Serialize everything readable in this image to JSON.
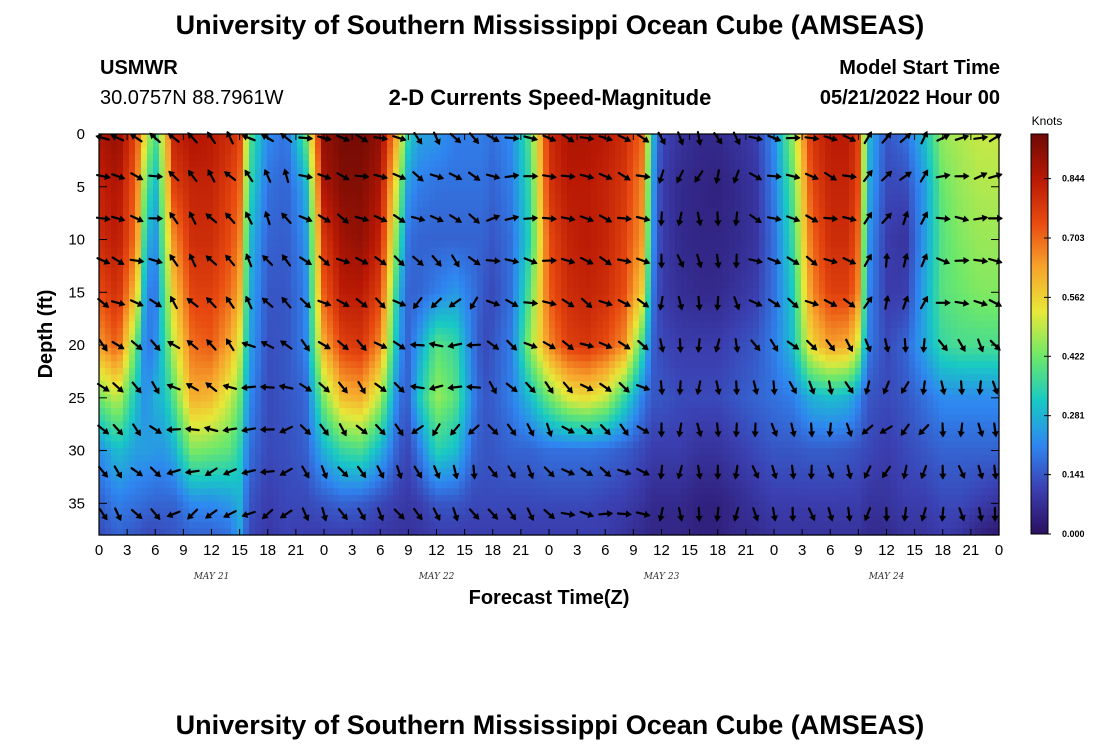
{
  "page": {
    "title_top": "University of Southern Mississippi Ocean Cube (AMSEAS)",
    "title_bottom": "University of Southern Mississippi Ocean Cube (AMSEAS)",
    "station": "USMWR",
    "coords": "30.0757N  88.7961W",
    "plot_title": "2-D Currents Speed-Magnitude",
    "model_start_label": "Model Start Time",
    "model_start_value": "05/21/2022 Hour 00"
  },
  "colors": {
    "ramp": [
      "#2a0f5f",
      "#3b3fb0",
      "#2f86f0",
      "#18c9c4",
      "#6de86a",
      "#e8e838",
      "#f7a32c",
      "#e84a10",
      "#b81804",
      "#6e0a04"
    ],
    "arrow": "#000000",
    "white_fill": "#ffffff"
  },
  "chart_data": {
    "type": "heatmap",
    "title": "2-D Currents Speed-Magnitude",
    "xlabel": "Forecast Time(Z)",
    "ylabel": "Depth (ft)",
    "x_ticks": [
      "0",
      "3",
      "6",
      "9",
      "12",
      "15",
      "18",
      "21",
      "0",
      "3",
      "6",
      "9",
      "12",
      "15",
      "18",
      "21",
      "0",
      "3",
      "6",
      "9",
      "12",
      "15",
      "18",
      "21",
      "0",
      "3",
      "6",
      "9",
      "12",
      "15",
      "18",
      "21",
      "0"
    ],
    "x_range_hours": [
      0,
      96
    ],
    "day_labels": [
      {
        "text": "MAY 21",
        "hour": 12
      },
      {
        "text": "MAY 22",
        "hour": 36
      },
      {
        "text": "MAY 23",
        "hour": 60
      },
      {
        "text": "MAY 24",
        "hour": 84
      }
    ],
    "y_ticks": [
      "0",
      "5",
      "10",
      "15",
      "20",
      "25",
      "30",
      "35"
    ],
    "y_range_ft": [
      0,
      38
    ],
    "colorbar": {
      "unit": "Knots",
      "ticks": [
        "0.000",
        "0.141",
        "0.281",
        "0.422",
        "0.562",
        "0.703",
        "0.844"
      ],
      "range": [
        0,
        0.95
      ]
    },
    "arrow_depths_ft": [
      0,
      4,
      8,
      12,
      16,
      20,
      24,
      28,
      32,
      36
    ],
    "speed_profiles": {
      "depths_ft": [
        0,
        5,
        10,
        15,
        20,
        25,
        30,
        35,
        38
      ],
      "hours": [
        0,
        2,
        4,
        5,
        6,
        7,
        8,
        10,
        12,
        14,
        15,
        16,
        18,
        20,
        22,
        24,
        26,
        28,
        30,
        32,
        33,
        34,
        36,
        38,
        40,
        41,
        42,
        44,
        46,
        48,
        50,
        52,
        54,
        56,
        58,
        59,
        60,
        62,
        64,
        66,
        68,
        70,
        72,
        74,
        76,
        78,
        80,
        81,
        82,
        84,
        86,
        88,
        90,
        92,
        94,
        96
      ],
      "values_knots": [
        [
          0.86,
          0.82,
          0.8,
          0.74,
          0.64,
          0.42,
          0.22,
          0.15,
          0.12
        ],
        [
          0.9,
          0.86,
          0.84,
          0.8,
          0.72,
          0.5,
          0.3,
          0.2,
          0.16
        ],
        [
          0.74,
          0.7,
          0.68,
          0.58,
          0.4,
          0.3,
          0.25,
          0.18,
          0.14
        ],
        [
          0.52,
          0.4,
          0.3,
          0.22,
          0.18,
          0.22,
          0.25,
          0.17,
          0.12
        ],
        [
          0.38,
          0.28,
          0.22,
          0.18,
          0.22,
          0.28,
          0.24,
          0.16,
          0.12
        ],
        [
          0.55,
          0.5,
          0.45,
          0.4,
          0.35,
          0.3,
          0.24,
          0.16,
          0.13
        ],
        [
          0.82,
          0.76,
          0.66,
          0.58,
          0.5,
          0.4,
          0.28,
          0.16,
          0.14
        ],
        [
          0.86,
          0.82,
          0.8,
          0.76,
          0.7,
          0.62,
          0.44,
          0.22,
          0.16
        ],
        [
          0.84,
          0.82,
          0.8,
          0.76,
          0.72,
          0.6,
          0.42,
          0.22,
          0.16
        ],
        [
          0.8,
          0.76,
          0.74,
          0.7,
          0.62,
          0.5,
          0.4,
          0.24,
          0.18
        ],
        [
          0.76,
          0.72,
          0.68,
          0.62,
          0.52,
          0.42,
          0.34,
          0.28,
          0.26
        ],
        [
          0.4,
          0.36,
          0.3,
          0.28,
          0.26,
          0.22,
          0.18,
          0.14,
          0.12
        ],
        [
          0.22,
          0.18,
          0.16,
          0.14,
          0.13,
          0.12,
          0.12,
          0.1,
          0.09
        ],
        [
          0.18,
          0.16,
          0.15,
          0.14,
          0.14,
          0.14,
          0.13,
          0.12,
          0.11
        ],
        [
          0.4,
          0.26,
          0.22,
          0.2,
          0.2,
          0.16,
          0.15,
          0.12,
          0.1
        ],
        [
          0.9,
          0.86,
          0.78,
          0.72,
          0.62,
          0.44,
          0.28,
          0.14,
          0.1
        ],
        [
          0.94,
          0.92,
          0.88,
          0.84,
          0.76,
          0.6,
          0.36,
          0.16,
          0.1
        ],
        [
          0.94,
          0.92,
          0.9,
          0.84,
          0.78,
          0.62,
          0.38,
          0.15,
          0.1
        ],
        [
          0.9,
          0.86,
          0.82,
          0.76,
          0.66,
          0.48,
          0.28,
          0.12,
          0.09
        ],
        [
          0.58,
          0.46,
          0.38,
          0.28,
          0.24,
          0.18,
          0.14,
          0.1,
          0.08
        ],
        [
          0.34,
          0.24,
          0.18,
          0.16,
          0.16,
          0.16,
          0.12,
          0.09,
          0.08
        ],
        [
          0.26,
          0.2,
          0.16,
          0.16,
          0.24,
          0.3,
          0.18,
          0.1,
          0.08
        ],
        [
          0.24,
          0.18,
          0.16,
          0.2,
          0.4,
          0.46,
          0.34,
          0.14,
          0.1
        ],
        [
          0.2,
          0.18,
          0.16,
          0.24,
          0.36,
          0.4,
          0.3,
          0.14,
          0.1
        ],
        [
          0.2,
          0.18,
          0.16,
          0.18,
          0.18,
          0.2,
          0.16,
          0.12,
          0.1
        ],
        [
          0.2,
          0.18,
          0.16,
          0.14,
          0.12,
          0.14,
          0.14,
          0.12,
          0.1
        ],
        [
          0.18,
          0.16,
          0.14,
          0.12,
          0.14,
          0.15,
          0.14,
          0.12,
          0.1
        ],
        [
          0.22,
          0.2,
          0.18,
          0.18,
          0.2,
          0.2,
          0.16,
          0.12,
          0.1
        ],
        [
          0.4,
          0.36,
          0.34,
          0.4,
          0.46,
          0.3,
          0.16,
          0.12,
          0.1
        ],
        [
          0.8,
          0.78,
          0.74,
          0.72,
          0.66,
          0.42,
          0.18,
          0.12,
          0.1
        ],
        [
          0.86,
          0.84,
          0.82,
          0.8,
          0.76,
          0.52,
          0.18,
          0.12,
          0.1
        ],
        [
          0.86,
          0.84,
          0.84,
          0.82,
          0.78,
          0.55,
          0.18,
          0.12,
          0.1
        ],
        [
          0.84,
          0.82,
          0.82,
          0.8,
          0.74,
          0.5,
          0.17,
          0.11,
          0.1
        ],
        [
          0.8,
          0.78,
          0.76,
          0.74,
          0.66,
          0.36,
          0.15,
          0.1,
          0.08
        ],
        [
          0.7,
          0.66,
          0.64,
          0.56,
          0.36,
          0.2,
          0.12,
          0.08,
          0.06
        ],
        [
          0.3,
          0.26,
          0.24,
          0.2,
          0.16,
          0.14,
          0.1,
          0.06,
          0.05
        ],
        [
          0.12,
          0.1,
          0.1,
          0.1,
          0.12,
          0.14,
          0.1,
          0.06,
          0.05
        ],
        [
          0.08,
          0.06,
          0.06,
          0.07,
          0.1,
          0.12,
          0.1,
          0.06,
          0.05
        ],
        [
          0.06,
          0.05,
          0.05,
          0.06,
          0.1,
          0.12,
          0.08,
          0.04,
          0.04
        ],
        [
          0.06,
          0.04,
          0.05,
          0.06,
          0.1,
          0.12,
          0.08,
          0.04,
          0.04
        ],
        [
          0.08,
          0.06,
          0.06,
          0.08,
          0.12,
          0.14,
          0.1,
          0.06,
          0.06
        ],
        [
          0.1,
          0.08,
          0.08,
          0.1,
          0.14,
          0.16,
          0.12,
          0.08,
          0.06
        ],
        [
          0.22,
          0.2,
          0.18,
          0.18,
          0.2,
          0.18,
          0.14,
          0.1,
          0.08
        ],
        [
          0.46,
          0.4,
          0.36,
          0.32,
          0.3,
          0.2,
          0.14,
          0.1,
          0.08
        ],
        [
          0.78,
          0.74,
          0.7,
          0.66,
          0.56,
          0.28,
          0.15,
          0.1,
          0.08
        ],
        [
          0.84,
          0.82,
          0.8,
          0.76,
          0.64,
          0.3,
          0.15,
          0.1,
          0.08
        ],
        [
          0.84,
          0.82,
          0.8,
          0.76,
          0.62,
          0.28,
          0.14,
          0.1,
          0.08
        ],
        [
          0.76,
          0.74,
          0.7,
          0.66,
          0.5,
          0.22,
          0.13,
          0.1,
          0.08
        ],
        [
          0.3,
          0.28,
          0.24,
          0.22,
          0.2,
          0.14,
          0.12,
          0.08,
          0.06
        ],
        [
          0.14,
          0.12,
          0.1,
          0.1,
          0.12,
          0.12,
          0.1,
          0.08,
          0.06
        ],
        [
          0.18,
          0.12,
          0.08,
          0.1,
          0.16,
          0.14,
          0.12,
          0.1,
          0.08
        ],
        [
          0.3,
          0.24,
          0.24,
          0.26,
          0.26,
          0.18,
          0.14,
          0.1,
          0.08
        ],
        [
          0.46,
          0.42,
          0.4,
          0.4,
          0.36,
          0.22,
          0.16,
          0.12,
          0.1
        ],
        [
          0.48,
          0.46,
          0.44,
          0.42,
          0.38,
          0.22,
          0.16,
          0.12,
          0.08
        ],
        [
          0.5,
          0.48,
          0.46,
          0.44,
          0.38,
          0.22,
          0.16,
          0.1,
          0.04
        ],
        [
          0.5,
          0.48,
          0.46,
          0.44,
          0.38,
          0.22,
          0.16,
          0.08,
          0.02
        ]
      ]
    },
    "arrow_direction_segments": [
      {
        "hours": [
          0,
          7
        ],
        "dir_deg_by_depth": [
          300,
          110,
          100,
          110,
          120,
          130,
          135,
          135,
          140,
          140
        ]
      },
      {
        "hours": [
          7,
          15
        ],
        "dir_deg_by_depth": [
          320,
          320,
          325,
          320,
          320,
          315,
          300,
          270,
          250,
          240
        ]
      },
      {
        "hours": [
          15,
          22
        ],
        "dir_deg_by_depth": [
          300,
          330,
          330,
          330,
          320,
          300,
          270,
          260,
          250,
          240
        ]
      },
      {
        "hours": [
          22,
          34
        ],
        "dir_deg_by_depth": [
          110,
          110,
          115,
          120,
          125,
          130,
          135,
          140,
          150,
          150
        ]
      },
      {
        "hours": [
          34,
          42
        ],
        "dir_deg_by_depth": [
          140,
          120,
          120,
          140,
          220,
          270,
          270,
          220,
          160,
          150
        ]
      },
      {
        "hours": [
          42,
          50
        ],
        "dir_deg_by_depth": [
          110,
          90,
          80,
          100,
          110,
          120,
          140,
          150,
          150,
          140
        ]
      },
      {
        "hours": [
          50,
          60
        ],
        "dir_deg_by_depth": [
          110,
          110,
          110,
          110,
          120,
          120,
          125,
          130,
          120,
          100
        ]
      },
      {
        "hours": [
          60,
          70
        ],
        "dir_deg_by_depth": [
          160,
          200,
          180,
          170,
          175,
          180,
          180,
          180,
          180,
          180
        ]
      },
      {
        "hours": [
          70,
          82
        ],
        "dir_deg_by_depth": [
          100,
          110,
          110,
          115,
          120,
          140,
          160,
          170,
          170,
          170
        ]
      },
      {
        "hours": [
          82,
          89
        ],
        "dir_deg_by_depth": [
          40,
          40,
          30,
          20,
          20,
          170,
          200,
          230,
          200,
          190
        ]
      },
      {
        "hours": [
          89,
          96
        ],
        "dir_deg_by_depth": [
          70,
          80,
          90,
          100,
          105,
          150,
          170,
          175,
          170,
          170
        ]
      }
    ]
  }
}
